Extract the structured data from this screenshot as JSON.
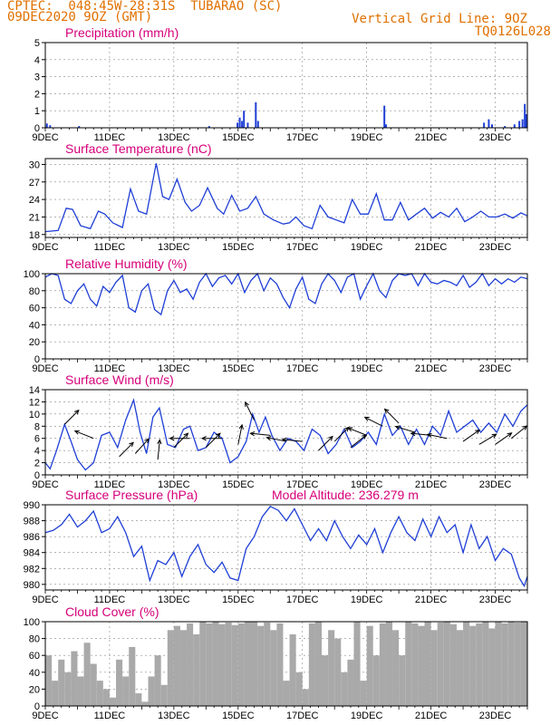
{
  "header": {
    "line1": "CPTEC:  048:45W-28:31S  TUBARAO (SC)",
    "line2": "09DEC2020 9OZ (GMT)",
    "grid_note": "Vertical Grid Line: 9OZ",
    "code": "TQ0126L028"
  },
  "colors": {
    "line": "#1f3fd6",
    "title": "#d6007a",
    "header": "#e07000",
    "cloud": "#a9a9a9",
    "grid": "#888888"
  },
  "chart_data": [
    {
      "id": "precip",
      "type": "bar",
      "title": "Precipitation (mm/h)",
      "ylim": [
        0,
        5
      ],
      "yticks": [
        0,
        1,
        2,
        3,
        4,
        5
      ],
      "xlim": [
        0,
        15
      ],
      "xtick_days": [
        0,
        2,
        4,
        6,
        8,
        10,
        12,
        14
      ],
      "xtick_labels": [
        "9DEC",
        "11DEC",
        "13DEC",
        "15DEC",
        "17DEC",
        "19DEC",
        "21DEC",
        "23DEC"
      ],
      "grid": true,
      "x": [
        0.05,
        0.15,
        1.05,
        5.1,
        5.98,
        6.05,
        6.12,
        6.18,
        6.3,
        6.55,
        6.62,
        10.55,
        10.6,
        13.65,
        13.8,
        13.9,
        14.3,
        14.6,
        14.75,
        14.85,
        14.92,
        14.97
      ],
      "values": [
        0.25,
        0.15,
        0.1,
        0.1,
        0.3,
        0.6,
        0.4,
        1.0,
        0.3,
        1.5,
        0.4,
        1.3,
        0.2,
        0.3,
        0.5,
        0.2,
        0.1,
        0.2,
        0.4,
        0.5,
        1.4,
        0.8
      ]
    },
    {
      "id": "temp",
      "type": "line",
      "title": "Surface Temperature (nC)",
      "ylim": [
        17.5,
        31
      ],
      "yticks": [
        18,
        21,
        24,
        27,
        30
      ],
      "xlim": [
        0,
        15
      ],
      "xtick_days": [
        0,
        2,
        4,
        6,
        8,
        10,
        12,
        14
      ],
      "xtick_labels": [
        "9DEC",
        "11DEC",
        "13DEC",
        "15DEC",
        "17DEC",
        "19DEC",
        "21DEC",
        "23DEC"
      ],
      "grid": true,
      "x": [
        0,
        0.4,
        0.65,
        0.85,
        1.1,
        1.4,
        1.65,
        1.85,
        2.1,
        2.4,
        2.65,
        2.9,
        3.15,
        3.45,
        3.65,
        3.85,
        4.1,
        4.35,
        4.55,
        4.8,
        5.05,
        5.35,
        5.55,
        5.8,
        6.05,
        6.3,
        6.55,
        6.8,
        7.1,
        7.4,
        7.6,
        7.8,
        8.05,
        8.3,
        8.55,
        8.8,
        9.05,
        9.3,
        9.55,
        9.8,
        10.05,
        10.3,
        10.55,
        10.8,
        11.05,
        11.3,
        11.55,
        11.8,
        12.05,
        12.3,
        12.55,
        12.8,
        13.05,
        13.3,
        13.55,
        13.8,
        14.05,
        14.3,
        14.55,
        14.8,
        15
      ],
      "values": [
        18.5,
        18.7,
        22.5,
        22.3,
        19.5,
        19.0,
        22.0,
        21.5,
        20.0,
        19.2,
        25.8,
        22.0,
        21.5,
        30.2,
        24.5,
        24.0,
        27.5,
        23.5,
        22.0,
        23.0,
        26.0,
        22.5,
        21.5,
        24.7,
        22.0,
        22.5,
        24.5,
        21.5,
        20.5,
        19.8,
        20.0,
        21.0,
        19.5,
        19.0,
        23.0,
        21.0,
        20.5,
        20.0,
        24.0,
        21.5,
        21.5,
        25.0,
        20.5,
        20.5,
        23.5,
        20.5,
        21.5,
        22.5,
        20.8,
        21.8,
        21.0,
        22.5,
        20.2,
        21.0,
        22.0,
        21.0,
        21.0,
        21.5,
        20.8,
        21.7,
        21.2
      ]
    },
    {
      "id": "rh",
      "type": "line",
      "title": "Relative Humidity (%)",
      "ylim": [
        0,
        100
      ],
      "yticks": [
        0,
        20,
        40,
        60,
        80,
        100
      ],
      "xlim": [
        0,
        15
      ],
      "xtick_days": [
        0,
        2,
        4,
        6,
        8,
        10,
        12,
        14
      ],
      "xtick_labels": [
        "9DEC",
        "11DEC",
        "13DEC",
        "15DEC",
        "17DEC",
        "19DEC",
        "21DEC",
        "23DEC"
      ],
      "grid": true,
      "x": [
        0,
        0.2,
        0.4,
        0.6,
        0.8,
        1.0,
        1.2,
        1.4,
        1.6,
        1.8,
        2.0,
        2.2,
        2.4,
        2.6,
        2.8,
        3.0,
        3.2,
        3.4,
        3.6,
        3.8,
        4.0,
        4.2,
        4.4,
        4.6,
        4.8,
        5.0,
        5.2,
        5.4,
        5.6,
        5.8,
        6.0,
        6.2,
        6.4,
        6.6,
        6.8,
        7.0,
        7.2,
        7.4,
        7.6,
        7.8,
        8.0,
        8.2,
        8.4,
        8.6,
        8.8,
        9.0,
        9.2,
        9.4,
        9.6,
        9.8,
        10.0,
        10.2,
        10.4,
        10.6,
        10.8,
        11.0,
        11.2,
        11.4,
        11.6,
        11.8,
        12.0,
        12.2,
        12.4,
        12.6,
        12.8,
        13.0,
        13.2,
        13.4,
        13.6,
        13.8,
        14.0,
        14.2,
        14.4,
        14.6,
        14.8,
        15.0
      ],
      "values": [
        96,
        100,
        98,
        70,
        65,
        80,
        88,
        70,
        62,
        85,
        78,
        90,
        98,
        60,
        55,
        80,
        88,
        58,
        52,
        80,
        92,
        78,
        82,
        70,
        90,
        100,
        85,
        95,
        98,
        88,
        100,
        78,
        92,
        100,
        80,
        95,
        88,
        72,
        60,
        82,
        96,
        70,
        65,
        88,
        100,
        92,
        78,
        96,
        100,
        70,
        86,
        100,
        80,
        72,
        92,
        100,
        98,
        100,
        86,
        100,
        90,
        88,
        92,
        90,
        86,
        98,
        84,
        90,
        100,
        86,
        94,
        88,
        94,
        90,
        96,
        94
      ]
    },
    {
      "id": "wind",
      "type": "line",
      "title": "Surface Wind (m/s)",
      "ylim": [
        0,
        14
      ],
      "yticks": [
        0,
        2,
        4,
        6,
        8,
        10,
        12,
        14
      ],
      "xlim": [
        0,
        15
      ],
      "xtick_days": [
        0,
        2,
        4,
        6,
        8,
        10,
        12,
        14
      ],
      "xtick_labels": [
        "9DEC",
        "11DEC",
        "13DEC",
        "15DEC",
        "17DEC",
        "19DEC",
        "21DEC",
        "23DEC"
      ],
      "grid": true,
      "x": [
        0,
        0.15,
        0.35,
        0.6,
        0.8,
        1.0,
        1.25,
        1.5,
        1.75,
        2.0,
        2.25,
        2.5,
        2.75,
        2.95,
        3.15,
        3.35,
        3.55,
        3.8,
        4.05,
        4.3,
        4.5,
        4.75,
        5.0,
        5.25,
        5.5,
        5.75,
        6.0,
        6.25,
        6.45,
        6.65,
        6.85,
        7.05,
        7.3,
        7.55,
        7.8,
        8.05,
        8.3,
        8.55,
        8.8,
        9.05,
        9.3,
        9.55,
        9.8,
        10.05,
        10.3,
        10.55,
        10.8,
        11.05,
        11.3,
        11.55,
        11.8,
        12.05,
        12.3,
        12.55,
        12.8,
        13.05,
        13.3,
        13.55,
        13.8,
        14.05,
        14.3,
        14.55,
        14.8,
        15.0
      ],
      "values": [
        2.0,
        1.0,
        4.0,
        8.3,
        5.5,
        2.5,
        0.8,
        2.0,
        6.5,
        7.0,
        4.5,
        9.0,
        12.3,
        7.0,
        3.5,
        9.5,
        11.0,
        5.0,
        4.5,
        7.5,
        8.0,
        4.0,
        4.5,
        7.0,
        6.0,
        2.0,
        3.0,
        5.5,
        10.0,
        7.0,
        9.5,
        6.5,
        4.0,
        6.0,
        5.5,
        4.0,
        7.5,
        6.5,
        3.5,
        5.0,
        7.5,
        4.5,
        5.5,
        7.0,
        5.0,
        10.0,
        6.5,
        8.0,
        5.0,
        7.5,
        5.0,
        8.0,
        6.5,
        10.5,
        7.0,
        8.0,
        9.0,
        7.0,
        8.5,
        7.0,
        10.0,
        8.0,
        10.5,
        11.5
      ],
      "arrows": [
        {
          "x": 0.6,
          "speed": 8.3,
          "u": 1,
          "v": 1
        },
        {
          "x": 1.5,
          "speed": 6.0,
          "u": -1,
          "v": 0.4
        },
        {
          "x": 2.3,
          "speed": 3.0,
          "u": 1,
          "v": 1
        },
        {
          "x": 2.8,
          "speed": 3.5,
          "u": 1,
          "v": 1.1
        },
        {
          "x": 3.5,
          "speed": 2.5,
          "u": 0.1,
          "v": 1
        },
        {
          "x": 4.0,
          "speed": 4.5,
          "u": 1,
          "v": 1
        },
        {
          "x": 4.5,
          "speed": 6.0,
          "u": -1,
          "v": 0
        },
        {
          "x": 5.0,
          "speed": 4.5,
          "u": 1,
          "v": 1
        },
        {
          "x": 5.5,
          "speed": 6.0,
          "u": -1,
          "v": 0
        },
        {
          "x": 6.0,
          "speed": 5.0,
          "u": 0.2,
          "v": 1
        },
        {
          "x": 6.5,
          "speed": 9.0,
          "u": -0.5,
          "v": 1
        },
        {
          "x": 7.0,
          "speed": 6.5,
          "u": -1,
          "v": 0.1
        },
        {
          "x": 7.5,
          "speed": 5.5,
          "u": -1,
          "v": 0.2
        },
        {
          "x": 8.0,
          "speed": 5.5,
          "u": -1,
          "v": 0.1
        },
        {
          "x": 8.5,
          "speed": 4.0,
          "u": 1,
          "v": 1
        },
        {
          "x": 9.0,
          "speed": 5.5,
          "u": 1,
          "v": 1
        },
        {
          "x": 9.5,
          "speed": 4.5,
          "u": 1,
          "v": 0.8
        },
        {
          "x": 10.0,
          "speed": 6.5,
          "u": -1,
          "v": 0.4
        },
        {
          "x": 10.5,
          "speed": 8.0,
          "u": -1,
          "v": 0.5
        },
        {
          "x": 11.0,
          "speed": 8.5,
          "u": -1,
          "v": 1
        },
        {
          "x": 11.5,
          "speed": 7.0,
          "u": -1,
          "v": 0.3
        },
        {
          "x": 12.0,
          "speed": 6.5,
          "u": -1,
          "v": 0.1
        },
        {
          "x": 12.5,
          "speed": 6.0,
          "u": -1,
          "v": 0.2
        },
        {
          "x": 13.0,
          "speed": 5.5,
          "u": 1,
          "v": 0.7
        },
        {
          "x": 13.5,
          "speed": 5.0,
          "u": 1,
          "v": 0.6
        },
        {
          "x": 14.0,
          "speed": 5.0,
          "u": 1,
          "v": 0.7
        },
        {
          "x": 14.5,
          "speed": 6.0,
          "u": 1,
          "v": 0.8
        }
      ]
    },
    {
      "id": "press",
      "type": "line",
      "title": "Surface Pressure (hPa)",
      "annotation": "Model Altitude: 236.279 m",
      "ylim": [
        979.3,
        990
      ],
      "yticks": [
        980,
        982,
        984,
        986,
        988,
        990
      ],
      "xlim": [
        0,
        15
      ],
      "xtick_days": [
        0,
        2,
        4,
        6,
        8,
        10,
        12,
        14
      ],
      "xtick_labels": [
        "9DEC",
        "11DEC",
        "13DEC",
        "15DEC",
        "17DEC",
        "19DEC",
        "21DEC",
        "23DEC"
      ],
      "grid": true,
      "x": [
        0,
        0.25,
        0.5,
        0.75,
        1.0,
        1.25,
        1.5,
        1.75,
        2.0,
        2.25,
        2.5,
        2.75,
        3.0,
        3.25,
        3.5,
        3.75,
        4.0,
        4.25,
        4.5,
        4.75,
        5.0,
        5.25,
        5.5,
        5.75,
        6.0,
        6.25,
        6.5,
        6.75,
        7.0,
        7.25,
        7.5,
        7.75,
        8.0,
        8.25,
        8.5,
        8.75,
        9.0,
        9.25,
        9.5,
        9.75,
        10.0,
        10.25,
        10.5,
        10.75,
        11.0,
        11.25,
        11.5,
        11.75,
        12.0,
        12.25,
        12.5,
        12.75,
        13.0,
        13.25,
        13.5,
        13.75,
        14.0,
        14.25,
        14.5,
        14.75,
        14.9,
        15.0
      ],
      "values": [
        986.5,
        986.8,
        987.5,
        988.8,
        987.2,
        988.0,
        989.2,
        986.5,
        987.0,
        988.5,
        986.5,
        983.5,
        984.8,
        980.5,
        983.0,
        982.5,
        984.0,
        981.0,
        983.5,
        985.0,
        982.5,
        981.5,
        982.8,
        980.8,
        980.5,
        984.5,
        986.0,
        988.5,
        989.8,
        989.3,
        988.0,
        989.5,
        987.5,
        985.5,
        987.0,
        985.5,
        988.0,
        986.0,
        984.5,
        986.2,
        985.0,
        987.0,
        984.0,
        986.5,
        988.5,
        986.5,
        985.5,
        988.2,
        986.0,
        988.5,
        986.5,
        987.5,
        984.0,
        987.5,
        984.5,
        986.0,
        983.0,
        984.5,
        983.8,
        980.8,
        979.8,
        981.0
      ]
    },
    {
      "id": "cloud",
      "type": "area",
      "title": "Cloud Cover (%)",
      "ylim": [
        0,
        100
      ],
      "yticks": [
        0,
        20,
        40,
        60,
        80,
        100
      ],
      "xlim": [
        0,
        15
      ],
      "xtick_days": [
        0,
        2,
        4,
        6,
        8,
        10,
        12,
        14
      ],
      "xtick_labels": [
        "9DEC",
        "11DEC",
        "13DEC",
        "15DEC",
        "17DEC",
        "19DEC",
        "21DEC",
        "23DEC"
      ],
      "grid": true,
      "x": [
        0,
        0.2,
        0.4,
        0.6,
        0.8,
        1.0,
        1.2,
        1.4,
        1.6,
        1.8,
        2.0,
        2.2,
        2.4,
        2.6,
        2.8,
        3.0,
        3.2,
        3.4,
        3.6,
        3.8,
        4.0,
        4.2,
        4.4,
        4.6,
        4.8,
        5.0,
        5.2,
        5.4,
        5.6,
        5.8,
        6.0,
        6.2,
        6.4,
        6.6,
        6.8,
        7.0,
        7.2,
        7.4,
        7.6,
        7.8,
        8.0,
        8.2,
        8.4,
        8.6,
        8.8,
        9.0,
        9.2,
        9.4,
        9.6,
        9.8,
        10.0,
        10.2,
        10.4,
        10.6,
        10.8,
        11.0,
        11.2,
        11.4,
        11.6,
        11.8,
        12.0,
        12.2,
        12.4,
        12.6,
        12.8,
        13.0,
        13.2,
        13.4,
        13.6,
        13.8,
        14.0,
        14.2,
        14.4,
        14.6,
        14.8,
        15.0
      ],
      "values": [
        60,
        30,
        55,
        40,
        65,
        35,
        75,
        50,
        30,
        20,
        10,
        55,
        35,
        70,
        15,
        5,
        35,
        60,
        25,
        90,
        95,
        90,
        98,
        85,
        100,
        98,
        100,
        97,
        99,
        96,
        98,
        100,
        100,
        95,
        99,
        90,
        98,
        30,
        85,
        40,
        20,
        98,
        100,
        60,
        90,
        80,
        40,
        55,
        100,
        30,
        95,
        60,
        98,
        100,
        90,
        60,
        100,
        98,
        95,
        100,
        90,
        99,
        100,
        97,
        90,
        100,
        95,
        98,
        100,
        92,
        100,
        98,
        100,
        99,
        100,
        100
      ]
    }
  ]
}
